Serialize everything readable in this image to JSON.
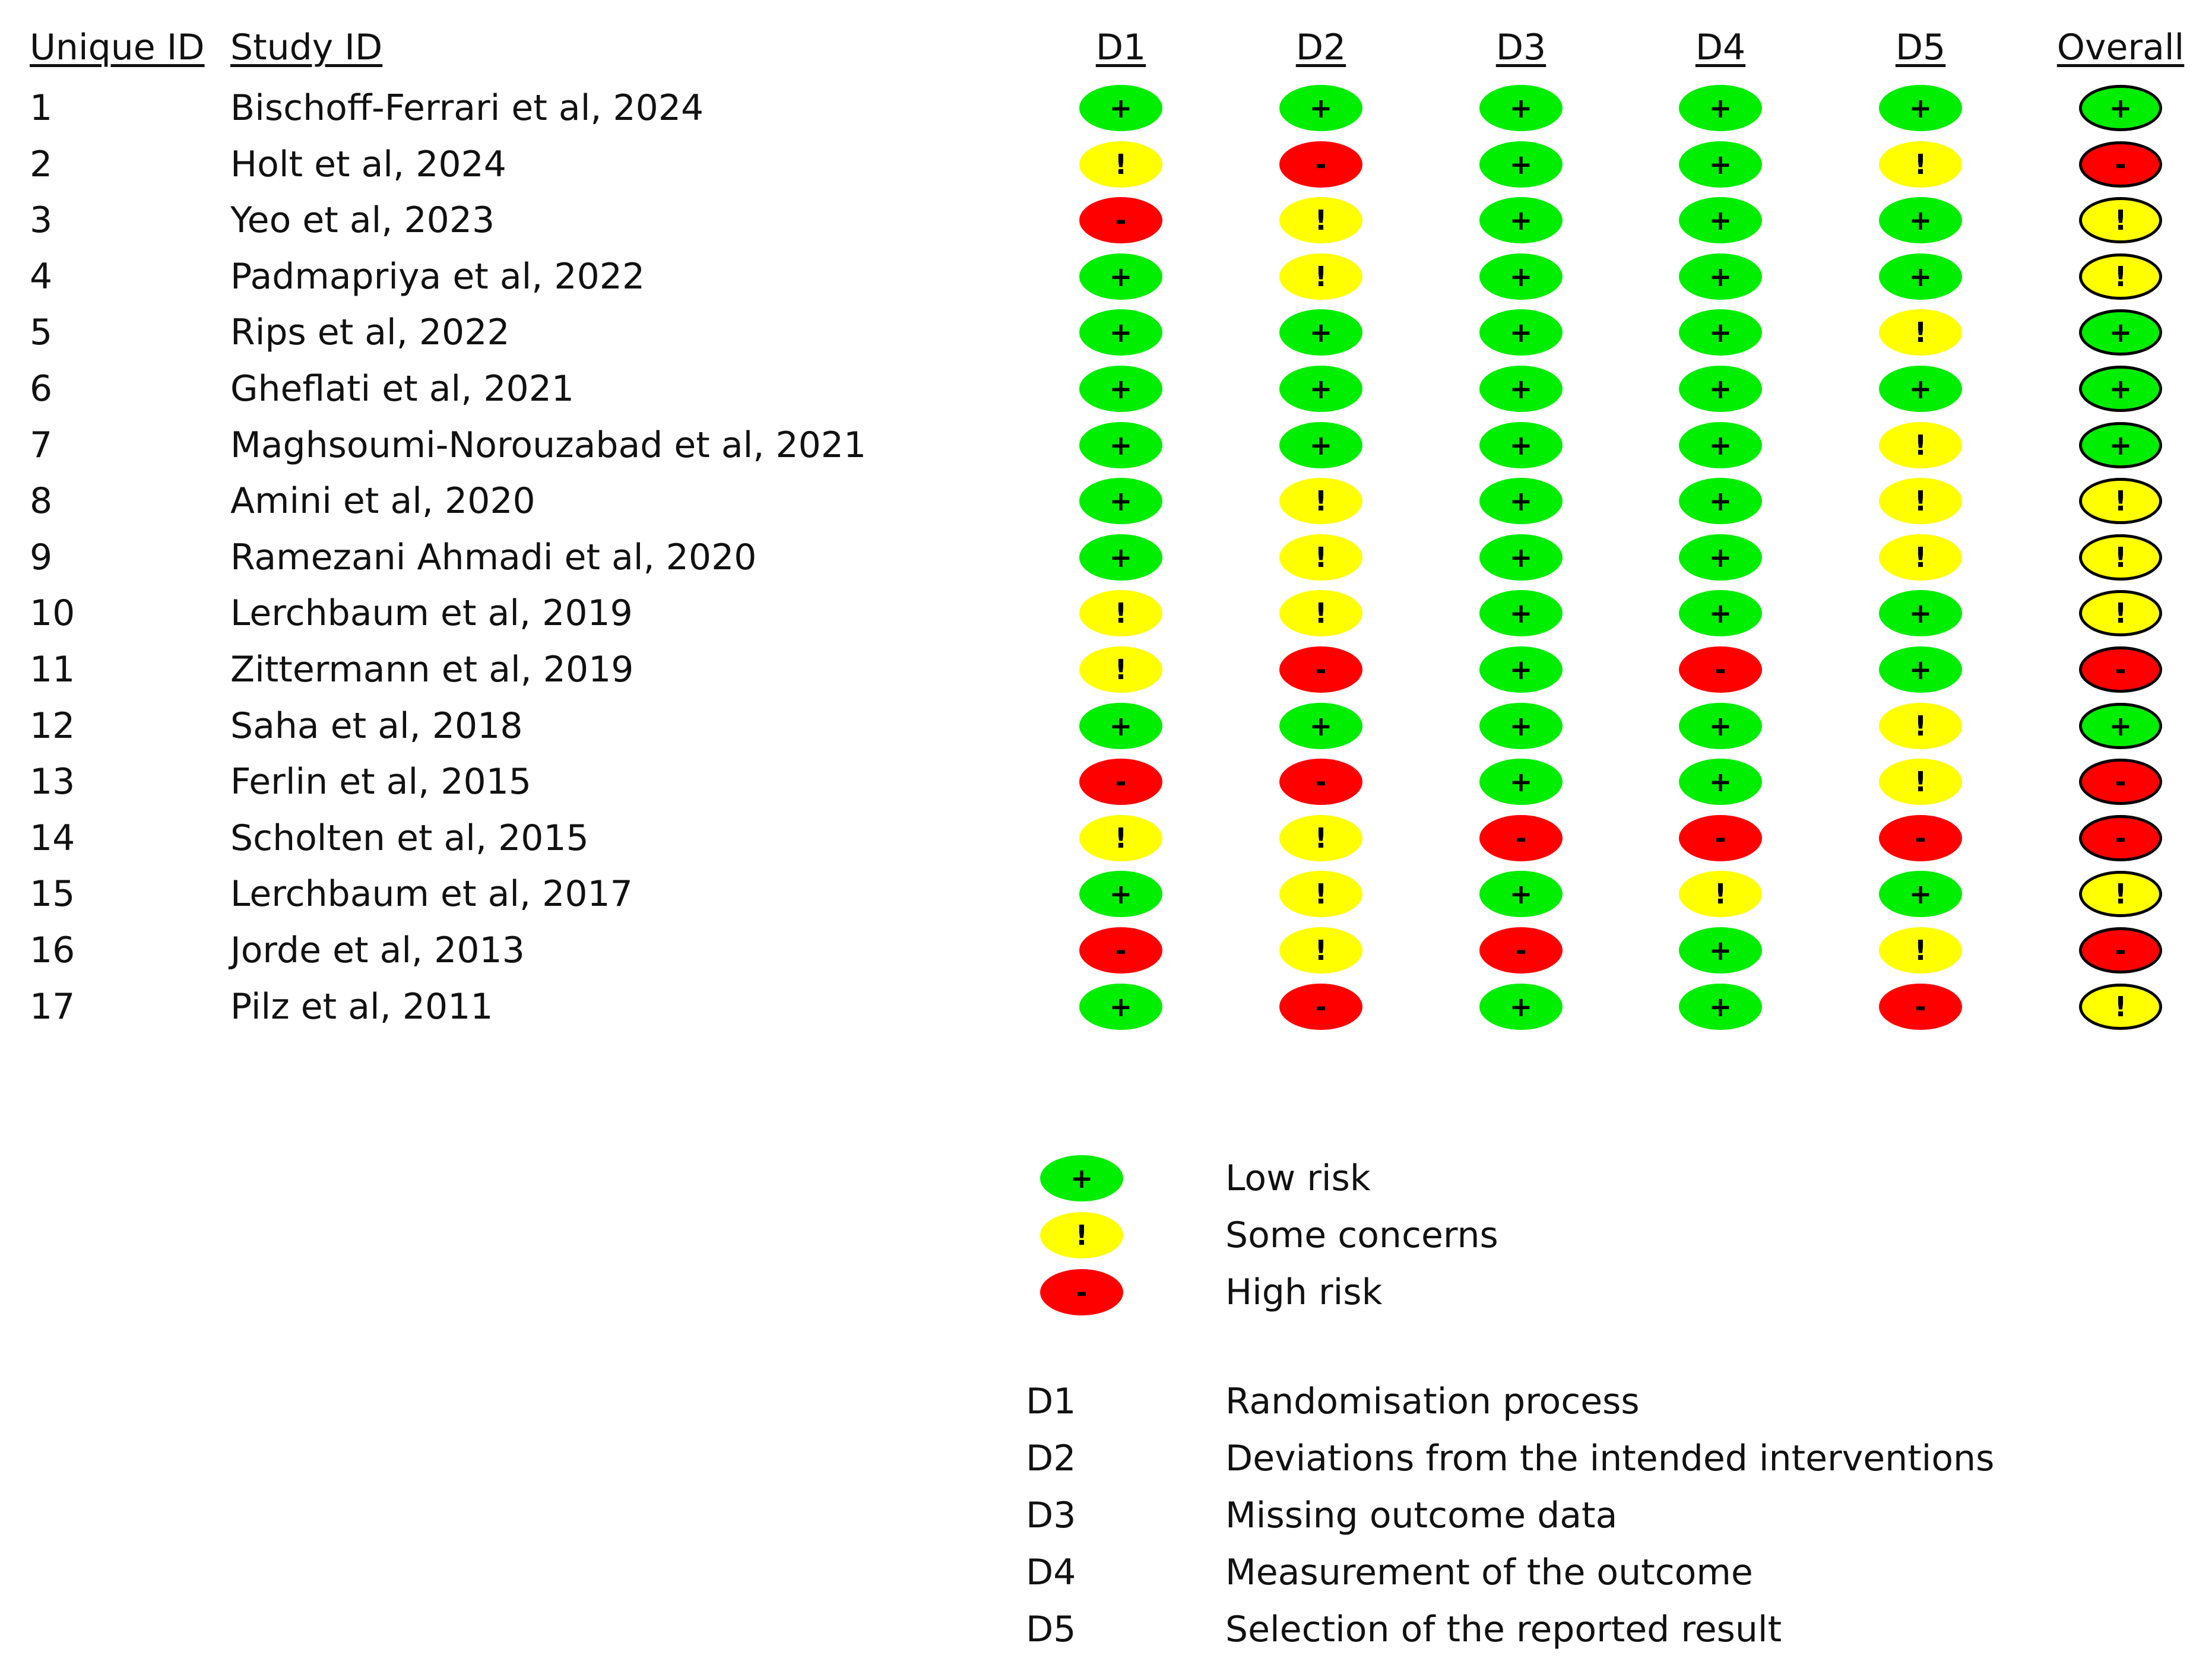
{
  "headers": {
    "unique_id": "Unique ID",
    "study_id": "Study ID",
    "domains": [
      "D1",
      "D2",
      "D3",
      "D4",
      "D5"
    ],
    "overall": "Overall"
  },
  "judgement_styles": {
    "low": {
      "symbol": "+",
      "color": "#00ee00"
    },
    "some": {
      "symbol": "!",
      "color": "#ffff00"
    },
    "high": {
      "symbol": "-",
      "color": "#ff0000"
    }
  },
  "studies": [
    {
      "uid": "1",
      "study": "Bischoff-Ferrari et al, 2024",
      "d": [
        "low",
        "low",
        "low",
        "low",
        "low"
      ],
      "overall": "low"
    },
    {
      "uid": "2",
      "study": "Holt et al, 2024",
      "d": [
        "some",
        "high",
        "low",
        "low",
        "some"
      ],
      "overall": "high"
    },
    {
      "uid": "3",
      "study": "Yeo et al, 2023",
      "d": [
        "high",
        "some",
        "low",
        "low",
        "low"
      ],
      "overall": "some"
    },
    {
      "uid": "4",
      "study": "Padmapriya et al, 2022",
      "d": [
        "low",
        "some",
        "low",
        "low",
        "low"
      ],
      "overall": "some"
    },
    {
      "uid": "5",
      "study": "Rips et al, 2022",
      "d": [
        "low",
        "low",
        "low",
        "low",
        "some"
      ],
      "overall": "low"
    },
    {
      "uid": "6",
      "study": "Gheflati et al, 2021",
      "d": [
        "low",
        "low",
        "low",
        "low",
        "low"
      ],
      "overall": "low"
    },
    {
      "uid": "7",
      "study": "Maghsoumi-Norouzabad et al, 2021",
      "d": [
        "low",
        "low",
        "low",
        "low",
        "some"
      ],
      "overall": "low"
    },
    {
      "uid": "8",
      "study": "Amini et al, 2020",
      "d": [
        "low",
        "some",
        "low",
        "low",
        "some"
      ],
      "overall": "some"
    },
    {
      "uid": "9",
      "study": "Ramezani Ahmadi et al, 2020",
      "d": [
        "low",
        "some",
        "low",
        "low",
        "some"
      ],
      "overall": "some"
    },
    {
      "uid": "10",
      "study": "Lerchbaum et al, 2019",
      "d": [
        "some",
        "some",
        "low",
        "low",
        "low"
      ],
      "overall": "some"
    },
    {
      "uid": "11",
      "study": "Zittermann et al, 2019",
      "d": [
        "some",
        "high",
        "low",
        "high",
        "low"
      ],
      "overall": "high"
    },
    {
      "uid": "12",
      "study": "Saha et al, 2018",
      "d": [
        "low",
        "low",
        "low",
        "low",
        "some"
      ],
      "overall": "low"
    },
    {
      "uid": "13",
      "study": "Ferlin et al, 2015",
      "d": [
        "high",
        "high",
        "low",
        "low",
        "some"
      ],
      "overall": "high"
    },
    {
      "uid": "14",
      "study": "Scholten et al, 2015",
      "d": [
        "some",
        "some",
        "high",
        "high",
        "high"
      ],
      "overall": "high"
    },
    {
      "uid": "15",
      "study": "Lerchbaum et al, 2017",
      "d": [
        "low",
        "some",
        "low",
        "some",
        "low"
      ],
      "overall": "some"
    },
    {
      "uid": "16",
      "study": "Jorde et al, 2013",
      "d": [
        "high",
        "some",
        "high",
        "low",
        "some"
      ],
      "overall": "high"
    },
    {
      "uid": "17",
      "study": "Pilz et al, 2011",
      "d": [
        "low",
        "high",
        "low",
        "low",
        "high"
      ],
      "overall": "some"
    }
  ],
  "legend": {
    "judgements": [
      {
        "key": "low",
        "label": "Low risk"
      },
      {
        "key": "some",
        "label": "Some concerns"
      },
      {
        "key": "high",
        "label": "High risk"
      }
    ],
    "domains": [
      {
        "code": "D1",
        "label": "Randomisation process"
      },
      {
        "code": "D2",
        "label": "Deviations from the intended interventions"
      },
      {
        "code": "D3",
        "label": "Missing outcome data"
      },
      {
        "code": "D4",
        "label": "Measurement of the outcome"
      },
      {
        "code": "D5",
        "label": "Selection of the reported result"
      }
    ]
  }
}
